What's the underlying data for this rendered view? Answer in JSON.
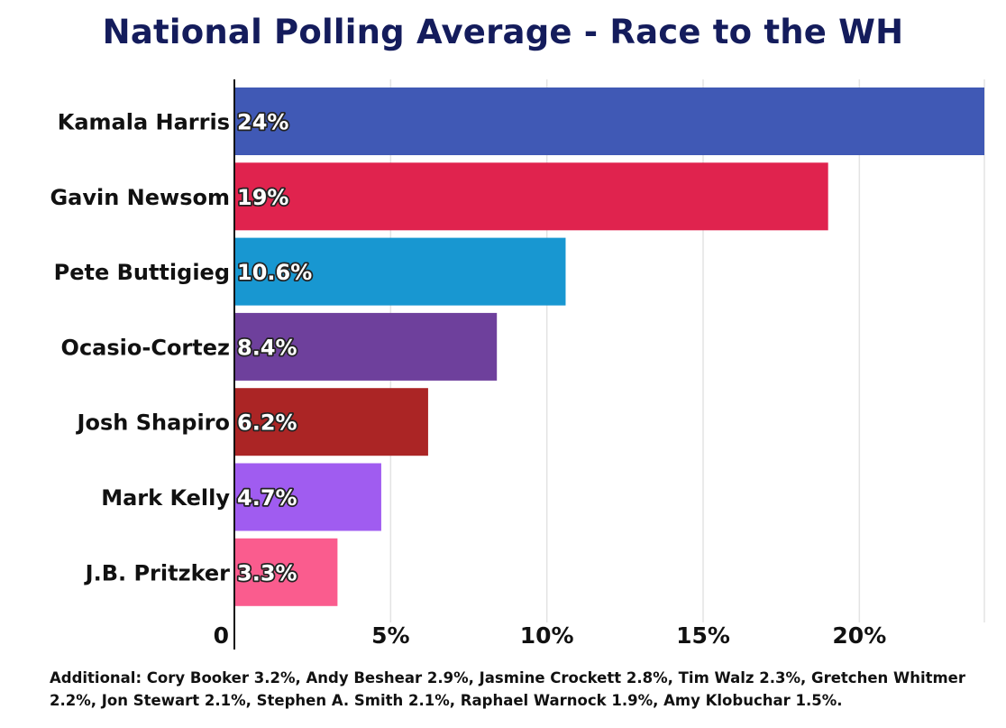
{
  "chart_data": {
    "type": "bar",
    "orientation": "horizontal",
    "title": "National Polling Average - Race to the WH",
    "categories": [
      "Kamala Harris",
      "Gavin Newsom",
      "Pete Buttigieg",
      "Ocasio-Cortez",
      "Josh Shapiro",
      "Mark Kelly",
      "J.B. Pritzker"
    ],
    "values": [
      24,
      19,
      10.6,
      8.4,
      6.2,
      4.7,
      3.3
    ],
    "data_labels": [
      "24%",
      "19%",
      "10.6%",
      "8.4%",
      "6.2%",
      "4.7%",
      "3.3%"
    ],
    "colors": [
      "#4059b5",
      "#e0234e",
      "#1897d1",
      "#6e409c",
      "#ab2525",
      "#a05cf0",
      "#fa5c8e"
    ],
    "xlim": [
      0,
      24
    ],
    "xticks": [
      0,
      5,
      10,
      15,
      20
    ],
    "xtick_labels": [
      "0",
      "5%",
      "10%",
      "15%",
      "20%"
    ],
    "grid": true,
    "footnote": "Additional: Cory Booker 3.2%, Andy Beshear 2.9%, Jasmine Crockett 2.8%, Tim Walz 2.3%, Gretchen Whitmer 2.2%, Jon Stewart 2.1%, Stephen A. Smith 2.1%, Raphael Warnock 1.9%, Amy Klobuchar 1.5%."
  }
}
